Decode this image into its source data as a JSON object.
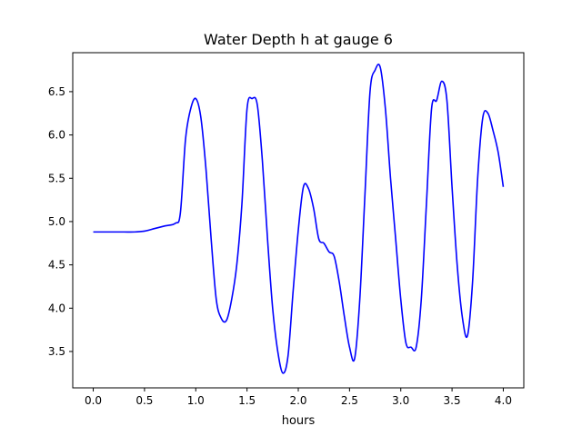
{
  "chart_data": {
    "type": "line",
    "title": "Water Depth h at gauge 6",
    "xlabel": "hours",
    "ylabel": "",
    "xlim": [
      -0.2,
      4.2
    ],
    "ylim": [
      3.08,
      6.95
    ],
    "x_ticks": [
      0.0,
      0.5,
      1.0,
      1.5,
      2.0,
      2.5,
      3.0,
      3.5,
      4.0
    ],
    "x_tick_labels": [
      "0.0",
      "0.5",
      "1.0",
      "1.5",
      "2.0",
      "2.5",
      "3.0",
      "3.5",
      "4.0"
    ],
    "y_ticks": [
      3.5,
      4.0,
      4.5,
      5.0,
      5.5,
      6.0,
      6.5
    ],
    "y_tick_labels": [
      "3.5",
      "4.0",
      "4.5",
      "5.0",
      "5.5",
      "6.0",
      "6.5"
    ],
    "grid": false,
    "legend": "none",
    "series": [
      {
        "color": "#0000ff",
        "x": [
          0.0,
          0.1,
          0.2,
          0.3,
          0.4,
          0.5,
          0.6,
          0.7,
          0.8,
          0.85,
          0.9,
          0.95,
          1.0,
          1.05,
          1.1,
          1.15,
          1.2,
          1.25,
          1.3,
          1.35,
          1.4,
          1.45,
          1.5,
          1.55,
          1.6,
          1.65,
          1.7,
          1.75,
          1.8,
          1.85,
          1.9,
          1.95,
          2.0,
          2.05,
          2.1,
          2.15,
          2.2,
          2.25,
          2.3,
          2.35,
          2.4,
          2.45,
          2.5,
          2.55,
          2.6,
          2.65,
          2.7,
          2.75,
          2.8,
          2.85,
          2.9,
          2.95,
          3.0,
          3.05,
          3.1,
          3.15,
          3.2,
          3.25,
          3.3,
          3.35,
          3.4,
          3.45,
          3.5,
          3.55,
          3.6,
          3.65,
          3.7,
          3.75,
          3.8,
          3.85,
          3.9,
          3.95,
          4.0
        ],
        "y": [
          4.88,
          4.88,
          4.88,
          4.88,
          4.88,
          4.89,
          4.92,
          4.95,
          4.98,
          5.1,
          5.95,
          6.3,
          6.42,
          6.2,
          5.6,
          4.8,
          4.1,
          3.88,
          3.86,
          4.1,
          4.5,
          5.2,
          6.3,
          6.42,
          6.35,
          5.7,
          4.8,
          4.0,
          3.5,
          3.25,
          3.45,
          4.2,
          4.9,
          5.4,
          5.38,
          5.15,
          4.8,
          4.75,
          4.65,
          4.6,
          4.3,
          3.9,
          3.55,
          3.42,
          4.1,
          5.3,
          6.5,
          6.75,
          6.78,
          6.3,
          5.5,
          4.8,
          4.1,
          3.6,
          3.55,
          3.55,
          4.1,
          5.2,
          6.3,
          6.4,
          6.62,
          6.4,
          5.4,
          4.5,
          3.9,
          3.68,
          4.3,
          5.5,
          6.2,
          6.25,
          6.05,
          5.8,
          5.4
        ]
      }
    ]
  }
}
